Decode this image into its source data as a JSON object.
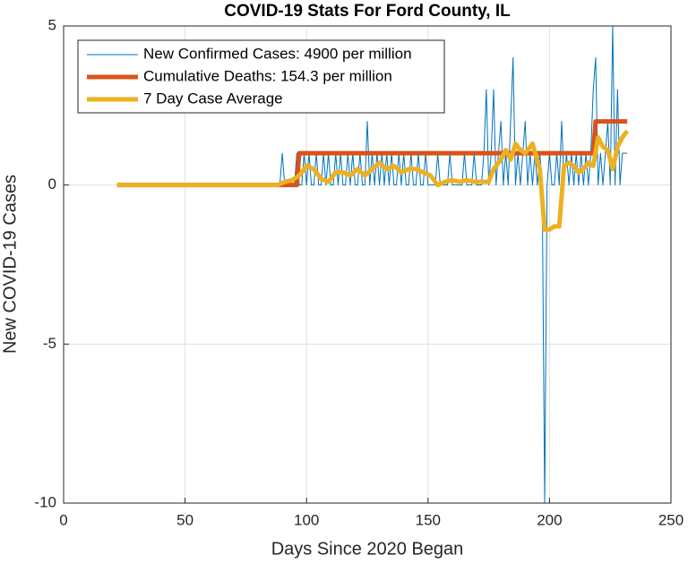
{
  "chart_data": {
    "type": "line",
    "title": "COVID-19 Stats For Ford County, IL",
    "x_label": "Days Since 2020 Began",
    "y_label": "New COVID-19 Cases",
    "xlim": [
      0,
      250
    ],
    "xticks": [
      0,
      50,
      100,
      150,
      200,
      250
    ],
    "ylim": [
      -10,
      5
    ],
    "yticks": [
      -10,
      -5,
      0,
      5
    ],
    "grid": true,
    "legend": "upper-left",
    "series": [
      {
        "name": "New Confirmed Cases: 4900 per million",
        "color": "#0072bd",
        "width": 1,
        "x": [
          22,
          88,
          89,
          90,
          91,
          92,
          93,
          94,
          95,
          96,
          97,
          98,
          99,
          100,
          101,
          102,
          103,
          104,
          105,
          106,
          107,
          108,
          109,
          110,
          111,
          112,
          113,
          114,
          115,
          116,
          117,
          118,
          119,
          120,
          121,
          122,
          123,
          124,
          125,
          126,
          127,
          128,
          129,
          130,
          131,
          132,
          133,
          134,
          135,
          136,
          137,
          138,
          139,
          140,
          141,
          142,
          143,
          144,
          145,
          146,
          147,
          148,
          149,
          150,
          151,
          152,
          153,
          154,
          155,
          156,
          157,
          158,
          159,
          160,
          161,
          162,
          163,
          164,
          165,
          166,
          167,
          168,
          169,
          170,
          171,
          172,
          173,
          174,
          175,
          176,
          177,
          178,
          179,
          180,
          181,
          182,
          183,
          184,
          185,
          186,
          187,
          188,
          189,
          190,
          191,
          192,
          193,
          194,
          195,
          196,
          197,
          198,
          199,
          200,
          201,
          202,
          203,
          204,
          205,
          206,
          207,
          208,
          209,
          210,
          211,
          212,
          213,
          214,
          215,
          216,
          217,
          218,
          219,
          220,
          221,
          222,
          223,
          224,
          225,
          226,
          227,
          228,
          229,
          230,
          231,
          232
        ],
        "values": [
          0,
          0,
          0,
          1,
          0,
          0,
          0,
          0,
          0,
          1,
          0,
          0,
          1,
          0,
          1,
          0,
          0,
          1,
          0,
          0,
          1,
          0,
          1,
          0,
          0,
          1,
          0,
          1,
          0,
          0,
          1,
          0,
          1,
          0,
          0,
          1,
          0,
          0,
          2,
          0,
          1,
          0,
          1,
          0,
          1,
          0,
          1,
          0,
          1,
          0,
          0,
          1,
          0,
          1,
          0,
          0,
          1,
          0,
          0,
          1,
          0,
          0,
          1,
          0,
          0,
          0,
          0,
          1,
          0,
          0,
          0,
          0,
          1,
          0,
          0,
          0,
          0,
          0,
          1,
          0,
          0,
          0,
          1,
          0,
          0,
          0,
          1,
          3,
          0,
          1,
          3,
          0,
          1,
          2,
          0,
          1,
          0,
          2,
          4,
          0,
          1,
          0,
          1,
          2,
          0,
          1,
          0,
          1,
          0,
          1,
          0,
          -10,
          0,
          1,
          0,
          0,
          1,
          0,
          2,
          0,
          1,
          0,
          1,
          0,
          1,
          0,
          1,
          0,
          1,
          0,
          1,
          3,
          4,
          0,
          1,
          0,
          1,
          2,
          0,
          5,
          0,
          3,
          0,
          1,
          1,
          1
        ]
      },
      {
        "name": "Cumulative Deaths: 154.3 per million",
        "color": "#d95319",
        "width": 5,
        "x": [
          22,
          96,
          97,
          218,
          219,
          232
        ],
        "values": [
          0,
          0,
          1,
          1,
          2,
          2
        ]
      },
      {
        "name": "7 Day Case Average",
        "color": "#edb120",
        "width": 5,
        "x": [
          22,
          88,
          91,
          94,
          97,
          100,
          103,
          106,
          109,
          112,
          115,
          118,
          121,
          124,
          127,
          130,
          133,
          136,
          139,
          142,
          145,
          148,
          151,
          154,
          157,
          160,
          163,
          166,
          169,
          172,
          175,
          177,
          180,
          182,
          184,
          186,
          188,
          190,
          193,
          196,
          198,
          200,
          202,
          204,
          206,
          208,
          210,
          212,
          214,
          216,
          218,
          220,
          222,
          224,
          226,
          228,
          230,
          232
        ],
        "values": [
          0,
          0,
          0.1,
          0.15,
          0.3,
          0.6,
          0.5,
          0.2,
          0.1,
          0.4,
          0.4,
          0.3,
          0.5,
          0.3,
          0.5,
          0.7,
          0.5,
          0.6,
          0.4,
          0.5,
          0.5,
          0.4,
          0.3,
          0,
          0.1,
          0.15,
          0.1,
          0.15,
          0.1,
          0.1,
          0.1,
          0.5,
          0.8,
          1.1,
          0.8,
          1.3,
          1.1,
          1.0,
          1.3,
          0.5,
          -1.4,
          -1.4,
          -1.3,
          -1.3,
          0.6,
          0.7,
          0.6,
          0.4,
          0.5,
          0.7,
          0.6,
          1.5,
          1.2,
          1.1,
          0.5,
          1.2,
          1.5,
          1.7
        ]
      }
    ]
  }
}
